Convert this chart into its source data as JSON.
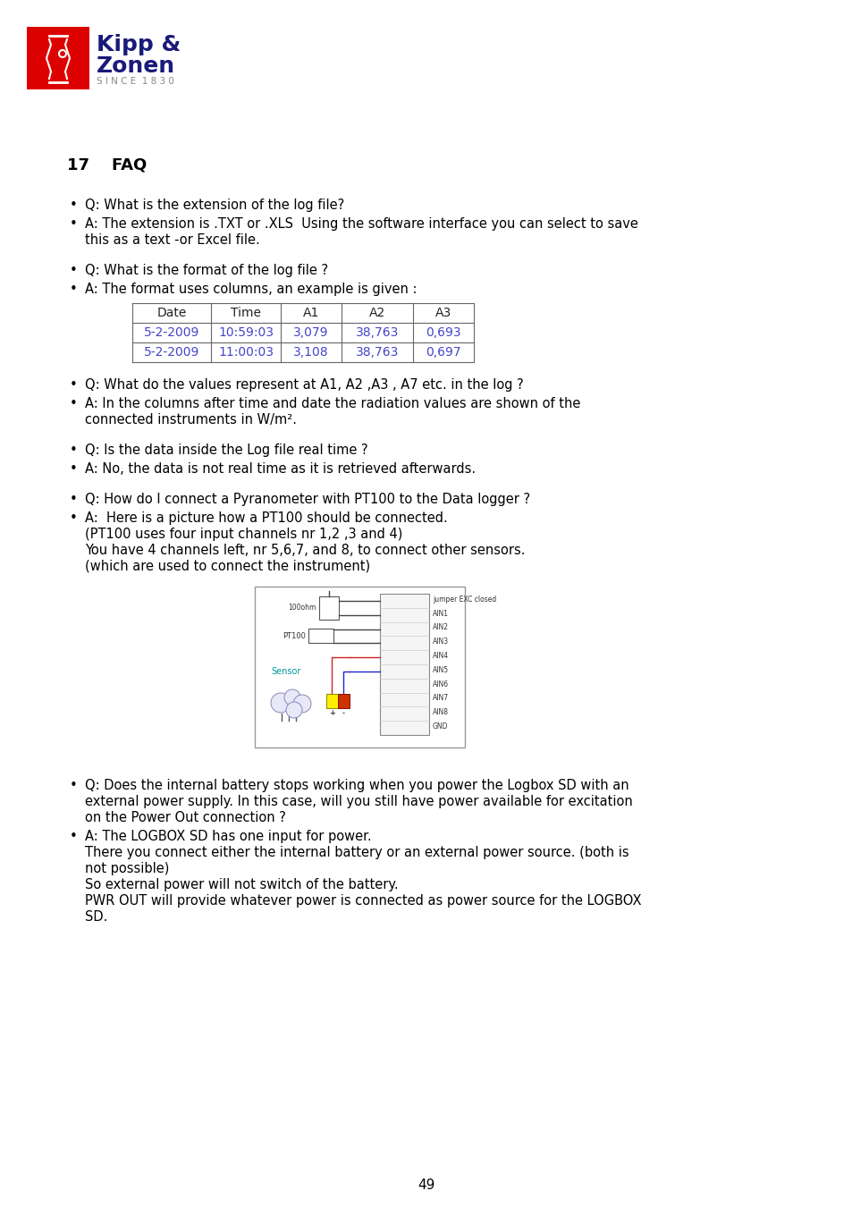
{
  "page_num": "49",
  "bg_color": "#ffffff",
  "logo_red": "#dd0000",
  "logo_blue": "#1a1a7a",
  "logo_gray": "#888888",
  "text_color": "#000000",
  "section_title": "17    FAQ",
  "bullets": [
    {
      "q": "Q: What is the extension of the log file?",
      "a": "A: The extension is .TXT or .XLS  Using the software interface you can select to save\nthis as a text -or Excel file."
    },
    {
      "q": "Q: What is the format of the log file ?",
      "a": "A: The format uses columns, an example is given :"
    },
    {
      "q": "Q: What do the values represent at A1, A2 ,A3 , A7 etc. in the log ?",
      "a": "A: In the columns after time and date the radiation values are shown of the\nconnected instruments in W/m²."
    },
    {
      "q": "Q: Is the data inside the Log file real time ?",
      "a": "A: No, the data is not real time as it is retrieved afterwards."
    },
    {
      "q": "Q: How do I connect a Pyranometer with PT100 to the Data logger ?",
      "a": "A:  Here is a picture how a PT100 should be connected.\n(PT100 uses four input channels nr 1,2 ,3 and 4)\nYou have 4 channels left, nr 5,6,7, and 8, to connect other sensors.\n(which are used to connect the instrument)"
    },
    {
      "q": "Q: Does the internal battery stops working when you power the Logbox SD with an\nexternal power supply. In this case, will you still have power available for excitation\non the Power Out connection ?",
      "a": "A: The LOGBOX SD has one input for power.\nThere you connect either the internal battery or an external power source. (both is\nnot possible)\nSo external power will not switch of the battery.\nPWR OUT will provide whatever power is connected as power source for the LOGBOX\nSD."
    }
  ],
  "table_headers": [
    "Date",
    "Time",
    "A1",
    "A2",
    "A3"
  ],
  "table_rows": [
    [
      "5-2-2009",
      "10:59:03",
      "3,079",
      "38,763",
      "0,693"
    ],
    [
      "5-2-2009",
      "11:00:03",
      "3,108",
      "38,763",
      "0,697"
    ]
  ]
}
